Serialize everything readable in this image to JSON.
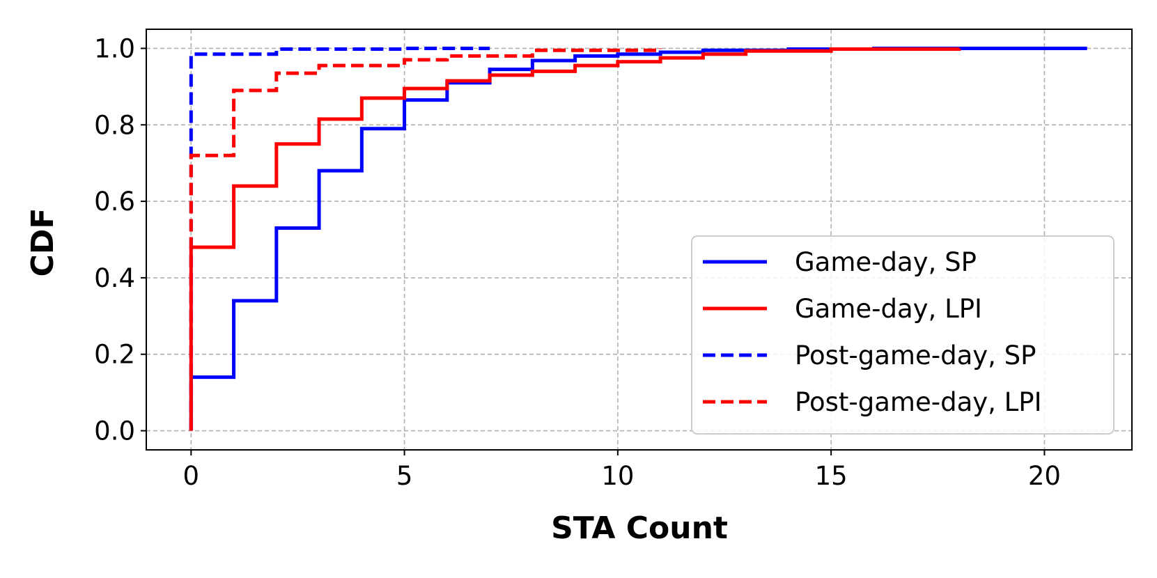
{
  "chart_data": {
    "type": "line",
    "step": true,
    "title": "",
    "xlabel": "STA Count",
    "ylabel": "CDF",
    "xlim": [
      -1.05,
      22.05
    ],
    "ylim": [
      -0.05,
      1.05
    ],
    "xticks": [
      0,
      5,
      10,
      15,
      20
    ],
    "yticks": [
      0.0,
      0.2,
      0.4,
      0.6,
      0.8,
      1.0
    ],
    "xtick_labels": [
      "0",
      "5",
      "10",
      "15",
      "20"
    ],
    "ytick_labels": [
      "0.0",
      "0.2",
      "0.4",
      "0.6",
      "0.8",
      "1.0"
    ],
    "grid": true,
    "legend_position": "lower-right",
    "series": [
      {
        "name": "Game-day, SP",
        "color": "#0000ff",
        "style": "solid",
        "x": [
          0,
          1,
          2,
          3,
          4,
          5,
          6,
          7,
          8,
          9,
          10,
          11,
          12,
          14,
          16,
          18,
          21
        ],
        "y": [
          0.14,
          0.34,
          0.53,
          0.68,
          0.79,
          0.865,
          0.91,
          0.945,
          0.968,
          0.98,
          0.985,
          0.99,
          0.995,
          0.998,
          1.0,
          1.0,
          1.0
        ]
      },
      {
        "name": "Game-day, LPI",
        "color": "#ff0000",
        "style": "solid",
        "x": [
          0,
          1,
          2,
          3,
          4,
          5,
          6,
          7,
          8,
          9,
          10,
          11,
          12,
          13,
          15,
          18
        ],
        "y": [
          0.48,
          0.64,
          0.75,
          0.815,
          0.87,
          0.895,
          0.915,
          0.93,
          0.94,
          0.955,
          0.965,
          0.975,
          0.985,
          0.993,
          0.998,
          1.0
        ]
      },
      {
        "name": "Post-game-day, SP",
        "color": "#0000ff",
        "style": "dashed",
        "x": [
          0,
          2,
          5,
          7
        ],
        "y": [
          0.985,
          0.998,
          1.0,
          1.0
        ]
      },
      {
        "name": "Post-game-day, LPI",
        "color": "#ff0000",
        "style": "dashed",
        "x": [
          0,
          1,
          2,
          3,
          5,
          6,
          8,
          11
        ],
        "y": [
          0.72,
          0.89,
          0.935,
          0.955,
          0.97,
          0.98,
          0.995,
          1.0
        ]
      }
    ]
  }
}
